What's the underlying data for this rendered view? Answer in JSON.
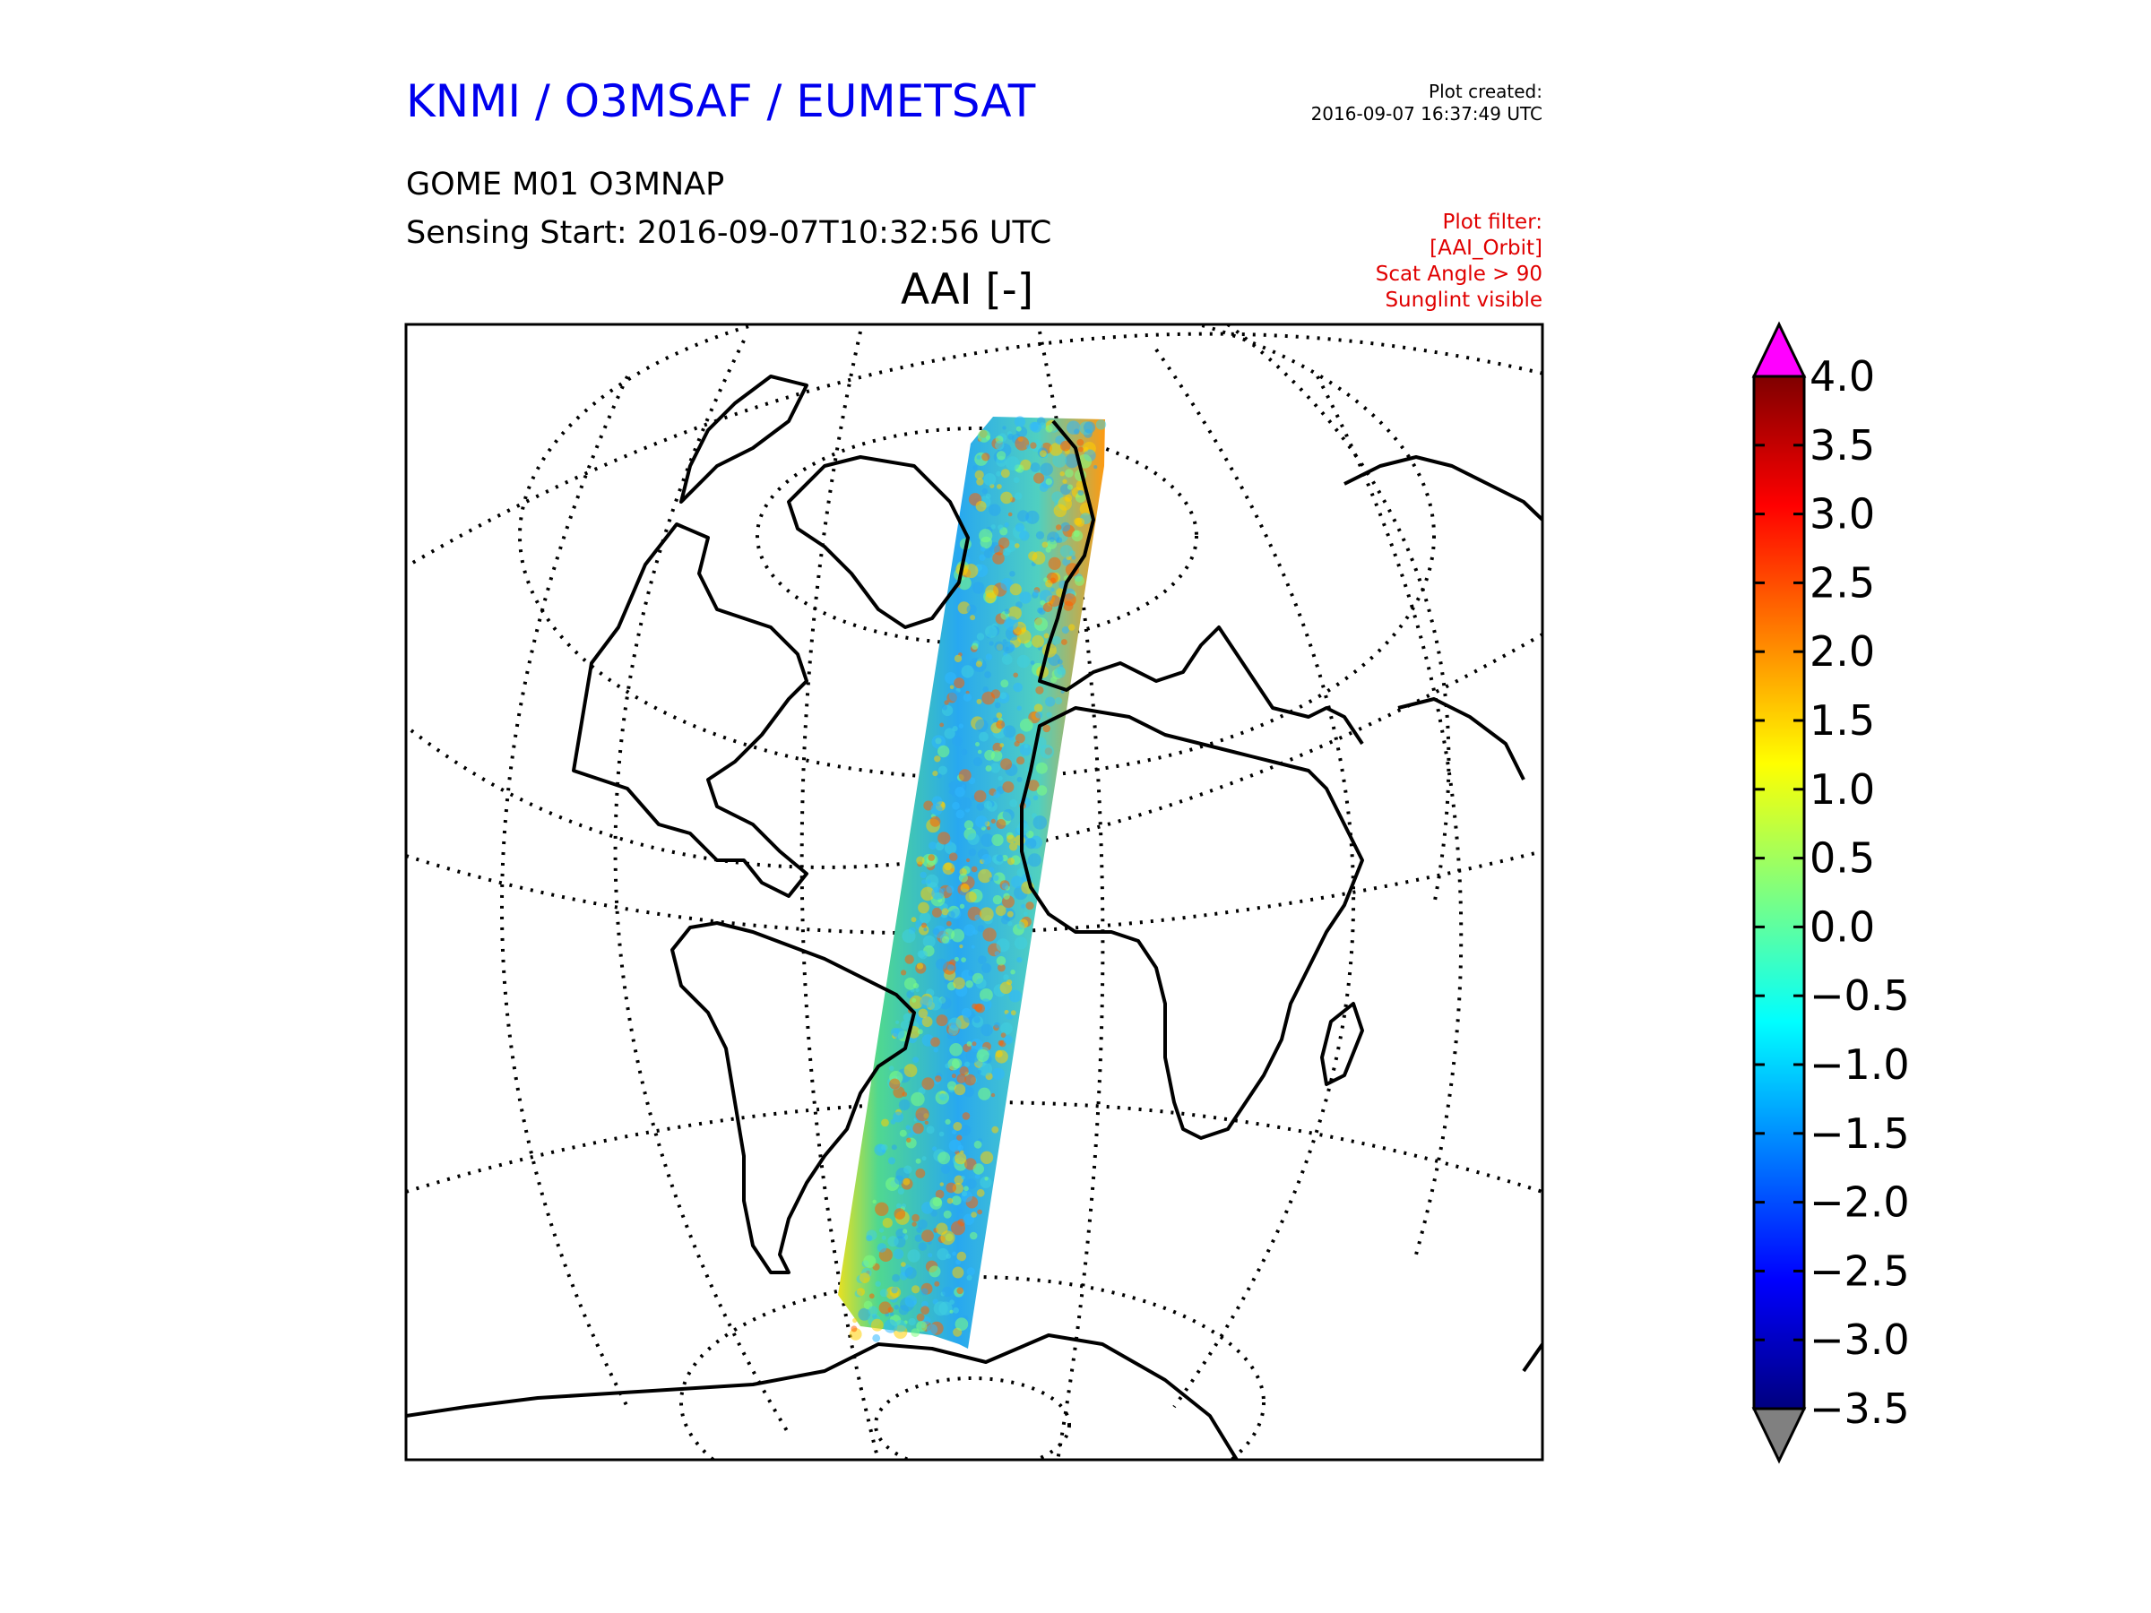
{
  "header": {
    "org_title": "KNMI / O3MSAF / EUMETSAT",
    "plot_created_label": "Plot created:",
    "plot_created_time": "2016-09-07 16:37:49 UTC",
    "product": "GOME M01 O3MNAP",
    "sensing_start": "Sensing Start: 2016-09-07T10:32:56 UTC"
  },
  "filter": {
    "lines": [
      "Plot filter:",
      "[AAI_Orbit]",
      "Scat Angle > 90",
      "Sunglint visible"
    ]
  },
  "map": {
    "title": "AAI [-]",
    "swath_colors": [
      "#2aa6f0",
      "#40d0e0",
      "#30b8ff",
      "#ffd000",
      "#ff6000",
      "#80ff80"
    ]
  },
  "colorbar": {
    "min": -3.5,
    "max": 4.0,
    "tick_labels": [
      "4.0",
      "3.5",
      "3.0",
      "2.5",
      "2.0",
      "1.5",
      "1.0",
      "0.5",
      "0.0",
      "−0.5",
      "−1.0",
      "−1.5",
      "−2.0",
      "−2.5",
      "−3.0",
      "−3.5"
    ],
    "over_color": "#ff00ff",
    "under_color": "#808080",
    "gradient": [
      "#00007f",
      "#0000ff",
      "#007fff",
      "#00ffff",
      "#7fff7f",
      "#ffff00",
      "#ff7f00",
      "#ff0000",
      "#7f0000"
    ]
  }
}
